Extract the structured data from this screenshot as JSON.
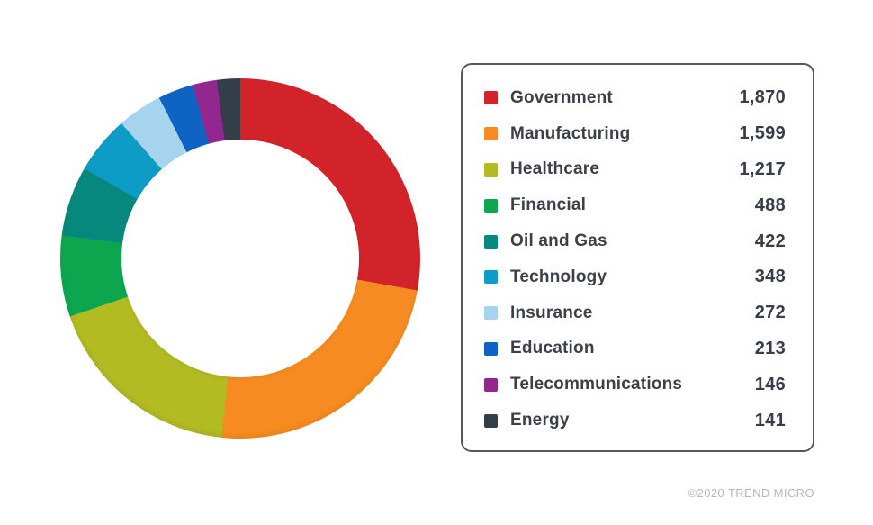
{
  "chart_data": {
    "type": "pie",
    "variant": "donut",
    "title": "",
    "categories": [
      "Government",
      "Manufacturing",
      "Healthcare",
      "Financial",
      "Oil and Gas",
      "Technology",
      "Insurance",
      "Education",
      "Telecommunications",
      "Energy"
    ],
    "values": [
      1870,
      1599,
      1217,
      488,
      422,
      348,
      272,
      213,
      146,
      141
    ],
    "display_values": [
      "1,870",
      "1,599",
      "1,217",
      "488",
      "422",
      "348",
      "272",
      "213",
      "146",
      "141"
    ],
    "colors": [
      "#d2232a",
      "#f68c21",
      "#b2bb22",
      "#0ca64f",
      "#06897c",
      "#0d9cc6",
      "#a6d4ee",
      "#0f63c3",
      "#92278f",
      "#333e48"
    ],
    "total": 6716,
    "start_angle_deg": 0,
    "direction": "clockwise",
    "donut_hole_ratio": 0.66,
    "legend_position": "right"
  },
  "legend_style": {
    "border_color": "#57585c"
  },
  "footer": {
    "copyright": "©2020 TREND MICRO"
  },
  "theme": {
    "background": "#ffffff",
    "text_color": "#3c4149",
    "value_text_color": "#383e47",
    "muted_text_color": "#b5b8ba"
  }
}
